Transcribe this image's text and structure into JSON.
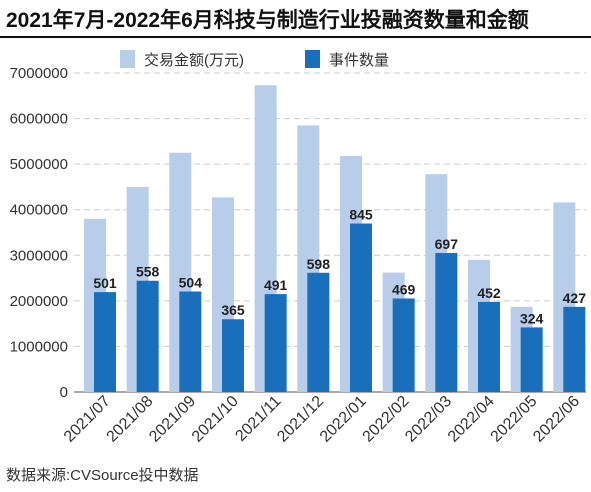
{
  "title": "2021年7月-2022年6月科技与制造行业投融资数量和金额",
  "source": "数据来源:CVSource投中数据",
  "colors": {
    "amount": "#b8cde9",
    "count": "#1a6fbd",
    "grid": "#cccccc"
  },
  "chart_data": {
    "type": "bar",
    "categories": [
      "2021/07",
      "2021/08",
      "2021/09",
      "2021/10",
      "2021/11",
      "2021/12",
      "2022/01",
      "2022/02",
      "2022/03",
      "2022/04",
      "2022/05",
      "2022/06"
    ],
    "series": [
      {
        "name": "交易金额(万元)",
        "values": [
          3800000,
          4500000,
          5250000,
          4270000,
          6730000,
          5850000,
          5180000,
          2620000,
          4780000,
          2900000,
          1870000,
          4160000
        ]
      },
      {
        "name": "事件数量",
        "values": [
          501,
          558,
          504,
          365,
          491,
          598,
          845,
          469,
          697,
          452,
          324,
          427
        ],
        "data_labels": [
          "501",
          "558",
          "504",
          "365",
          "491",
          "598",
          "845",
          "469",
          "697",
          "452",
          "324",
          "427"
        ]
      }
    ],
    "yticks": [
      "0",
      "1000000",
      "2000000",
      "3000000",
      "4000000",
      "5000000",
      "6000000",
      "7000000"
    ],
    "ylim": [
      0,
      7000000
    ],
    "count_scale_max": 1600,
    "grid": true,
    "legend_position": "top"
  }
}
